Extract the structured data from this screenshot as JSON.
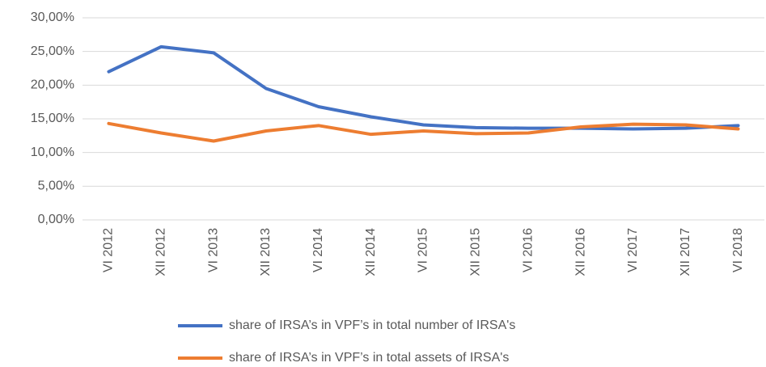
{
  "chart_data": {
    "type": "line",
    "categories": [
      "VI 2012",
      "XII 2012",
      "VI 2013",
      "XII 2013",
      "VI 2014",
      "XII 2014",
      "VI 2015",
      "XII 2015",
      "VI 2016",
      "XII 2016",
      "VI 2017",
      "XII 2017",
      "VI 2018"
    ],
    "series": [
      {
        "name": "share of IRSA’s in VPF’s in total number of IRSA's",
        "color": "#4472c4",
        "values": [
          22.0,
          25.7,
          24.8,
          19.5,
          16.8,
          15.3,
          14.1,
          13.7,
          13.6,
          13.6,
          13.5,
          13.6,
          14.0
        ]
      },
      {
        "name": "share of IRSA’s in VPF’s in total assets of IRSA's",
        "color": "#ed7d31",
        "values": [
          14.3,
          12.9,
          11.7,
          13.2,
          14.0,
          12.7,
          13.2,
          12.8,
          12.9,
          13.8,
          14.2,
          14.1,
          13.5
        ]
      }
    ],
    "ylim": [
      0,
      30
    ],
    "yticks": [
      {
        "value": 0,
        "label": "0,00%"
      },
      {
        "value": 5,
        "label": "5,00%"
      },
      {
        "value": 10,
        "label": "10,00%"
      },
      {
        "value": 15,
        "label": "15,00%"
      },
      {
        "value": 20,
        "label": "20,00%"
      },
      {
        "value": 25,
        "label": "25,00%"
      },
      {
        "value": 30,
        "label": "30,00%"
      }
    ],
    "grid": true,
    "legend": "bottom"
  }
}
